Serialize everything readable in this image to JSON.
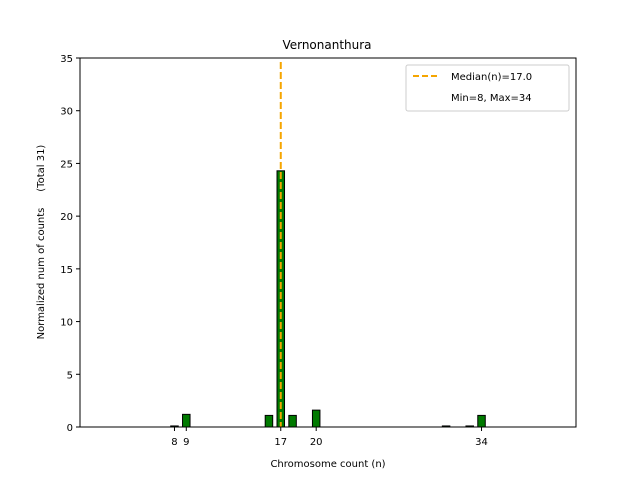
{
  "chart_data": {
    "type": "bar",
    "title": "Vernonanthura",
    "xlabel": "Chromosome count (n)",
    "ylabel": "Normalized num of counts     (Total 31)",
    "xlim": [
      0,
      42
    ],
    "ylim": [
      0,
      35
    ],
    "xticks": [
      8,
      9,
      17,
      20,
      34
    ],
    "yticks": [
      0,
      5,
      10,
      15,
      20,
      25,
      30,
      35
    ],
    "bar_color": "#007a00",
    "bar_edge_color": "#000000",
    "median_color": "#f5a500",
    "bars": [
      {
        "x": 8,
        "y": 0.1
      },
      {
        "x": 9,
        "y": 1.2
      },
      {
        "x": 16,
        "y": 1.1
      },
      {
        "x": 17,
        "y": 24.3
      },
      {
        "x": 18,
        "y": 1.1
      },
      {
        "x": 20,
        "y": 1.6
      },
      {
        "x": 31,
        "y": 0.1
      },
      {
        "x": 33,
        "y": 0.1
      },
      {
        "x": 34,
        "y": 1.1
      }
    ],
    "median": 17,
    "legend": {
      "placement": "top-right",
      "entries": [
        "Median(n)=17.0",
        "Min=8, Max=34"
      ]
    }
  }
}
